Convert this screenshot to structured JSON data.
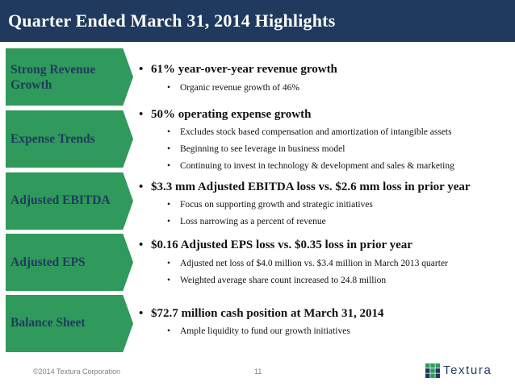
{
  "title": "Quarter Ended March 31, 2014 Highlights",
  "sections": [
    {
      "tab_label_lines": [
        "Strong Revenue",
        "Growth"
      ],
      "headline": "61% year-over-year revenue growth",
      "bullets": [
        "Organic revenue growth of 46%"
      ]
    },
    {
      "tab_label_lines": [
        "Expense Trends"
      ],
      "headline": "50% operating expense growth",
      "bullets": [
        "Excludes stock based compensation and amortization of intangible assets",
        "Beginning to see leverage in business model",
        "Continuing to invest in technology & development and sales & marketing"
      ]
    },
    {
      "tab_label_lines": [
        "Adjusted EBITDA"
      ],
      "headline": "$3.3 mm Adjusted EBITDA loss vs. $2.6 mm loss in prior year",
      "bullets": [
        "Focus on supporting growth and strategic initiatives",
        "Loss narrowing as a percent of revenue"
      ]
    },
    {
      "tab_label_lines": [
        "Adjusted EPS"
      ],
      "headline": "$0.16 Adjusted EPS loss vs. $0.35 loss in prior year",
      "bullets": [
        "Adjusted net loss of $4.0 million vs. $3.4 million in March 2013 quarter",
        "Weighted average share count increased to 24.8 million"
      ]
    },
    {
      "tab_label_lines": [
        "Balance Sheet"
      ],
      "headline": "$72.7 million cash position at March 31, 2014",
      "bullets": [
        "Ample liquidity to fund our growth initiatives"
      ]
    }
  ],
  "footer": {
    "copyright": "©2014 Textura Corporation",
    "page_number": "11",
    "logo_text": "Textura"
  },
  "colors": {
    "title_bar": "#1f3a5e",
    "tab_green": "#2f9a5b",
    "tab_text": "#1f3a5e",
    "logo_green": "#2f9a5b"
  }
}
